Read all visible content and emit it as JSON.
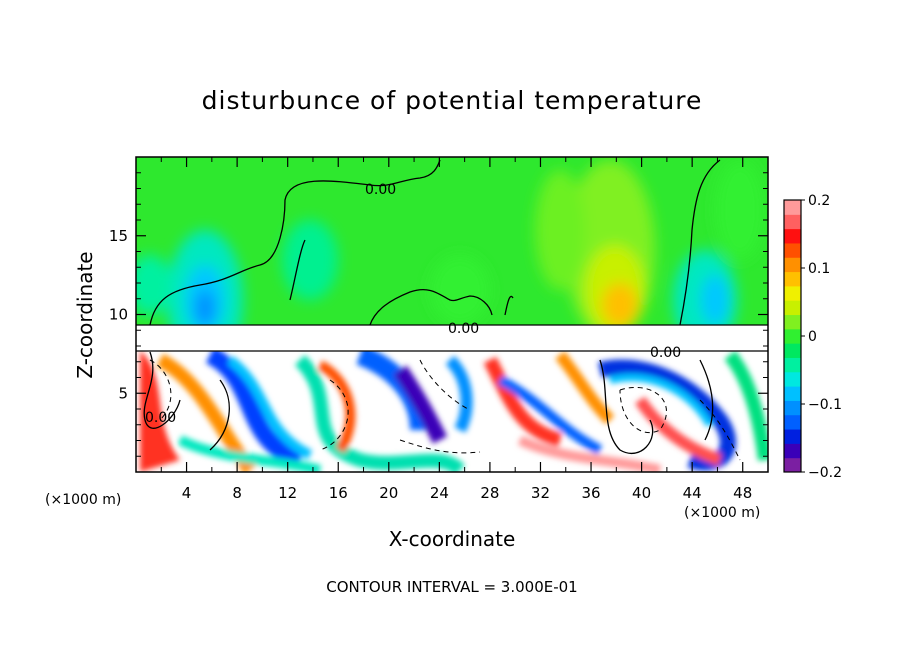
{
  "chart_data": {
    "type": "heatmap",
    "title": "disturbunce of potential temperature",
    "xlabel": "X-coordinate",
    "ylabel": "Z-coordinate",
    "x_unit_left": "(×1000 m)",
    "x_unit_right": "(×1000 m)",
    "xlim": [
      0,
      50
    ],
    "ylim": [
      0,
      20
    ],
    "x_ticks": [
      "4",
      "8",
      "12",
      "16",
      "20",
      "24",
      "28",
      "32",
      "36",
      "40",
      "44",
      "48"
    ],
    "y_ticks": [
      "5",
      "10",
      "15"
    ],
    "colorbar": {
      "min": -0.2,
      "max": 0.2,
      "tick_labels": [
        "0.2",
        "0.1",
        "0",
        "−0.1",
        "−0.2"
      ],
      "colors": [
        "#7b1fa2",
        "#3a00b8",
        "#0020e0",
        "#0060ff",
        "#0090ff",
        "#00c0ff",
        "#00e8e0",
        "#00f0a0",
        "#00e860",
        "#30f030",
        "#80f020",
        "#c8f000",
        "#f0f000",
        "#ffc000",
        "#ff9000",
        "#ff5000",
        "#ff1010",
        "#ff6060",
        "#ff9a9a"
      ]
    },
    "contour_labels": [
      "0.00",
      "0.00",
      "0.00",
      "0.00"
    ],
    "contour_interval": "CONTOUR INTERVAL = 3.000E-01"
  }
}
